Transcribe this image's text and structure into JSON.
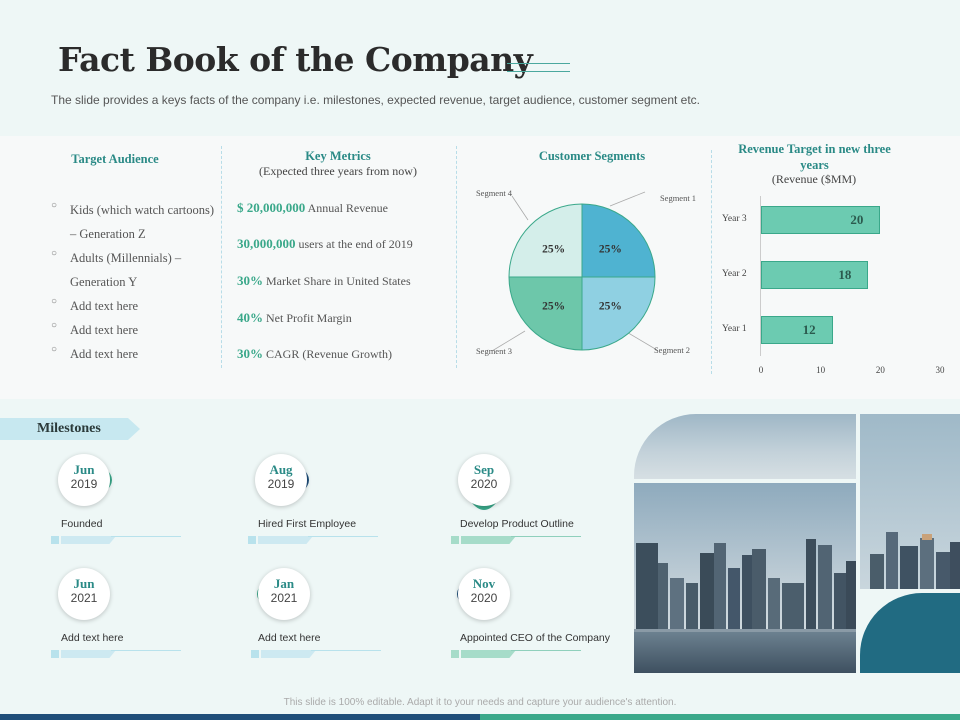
{
  "header": {
    "title": "Fact Book of the Company",
    "subtitle": "The slide provides  a keys facts of the company i.e. milestones, expected revenue,  target audience, customer segment etc."
  },
  "target_audience": {
    "heading": "Target Audience",
    "items": [
      "Kids (which watch cartoons)  – Generation  Z",
      "Adults (Millennials) – Generation  Y",
      "Add text here",
      "Add text here",
      "Add text here"
    ]
  },
  "key_metrics": {
    "heading": "Key Metrics",
    "subheading": "(Expected three years from now)",
    "rows": [
      {
        "value": "$ 20,000,000",
        "label": " Annual Revenue"
      },
      {
        "value": "30,000,000",
        "label": " users at the end of 2019"
      },
      {
        "value": "30%",
        "label": " Market Share in United States"
      },
      {
        "value": "40%",
        "label": " Net Profit Margin"
      },
      {
        "value": "30%",
        "label": " CAGR (Revenue Growth)"
      }
    ]
  },
  "customer_segments": {
    "heading": "Customer Segments",
    "segment_labels": [
      "Segment 1",
      "Segment 2",
      "Segment 3",
      "Segment 4"
    ]
  },
  "revenue": {
    "heading": "Revenue Target in new three years",
    "subheading": "(Revenue ($MM)"
  },
  "chart_data": [
    {
      "type": "pie",
      "title": "Customer Segments",
      "categories": [
        "Segment 1",
        "Segment 2",
        "Segment 3",
        "Segment 4"
      ],
      "values": [
        25,
        25,
        25,
        25
      ],
      "labels": [
        "25%",
        "25%",
        "25%",
        "25%"
      ],
      "colors": [
        "#4fb3d1",
        "#8fd0e2",
        "#6dc7aa",
        "#d4eeea"
      ]
    },
    {
      "type": "bar",
      "orientation": "horizontal",
      "title": "Revenue Target in new three years",
      "subtitle": "(Revenue ($MM)",
      "categories": [
        "Year 3",
        "Year 2",
        "Year 1"
      ],
      "values": [
        20,
        18,
        12
      ],
      "xlim": [
        0,
        30
      ],
      "ticks": [
        "0",
        "10",
        "20",
        "30"
      ],
      "color": "#6ccbb1"
    }
  ],
  "milestones": {
    "label": "Milestones",
    "items": [
      {
        "month": "Jun",
        "year": "2019",
        "text": "Founded"
      },
      {
        "month": "Aug",
        "year": "2019",
        "text": "Hired First Employee"
      },
      {
        "month": "Sep",
        "year": "2020",
        "text": "Develop Product Outline"
      },
      {
        "month": "Jun",
        "year": "2021",
        "text": "Add text here"
      },
      {
        "month": "Jan",
        "year": "2021",
        "text": "Add text here"
      },
      {
        "month": "Nov",
        "year": "2020",
        "text": "Appointed CEO  of the Company"
      }
    ]
  },
  "footer": {
    "text": "This slide is 100% editable. Adapt it to your needs and capture your audience's attention."
  },
  "colors": {
    "background": "#eef7f6",
    "teal_accent": "#2a8a86",
    "green_accent": "#3aa88a",
    "navy": "#1f4e79",
    "light_blue": "#c7e8f0",
    "tile_teal": "#216b82"
  }
}
